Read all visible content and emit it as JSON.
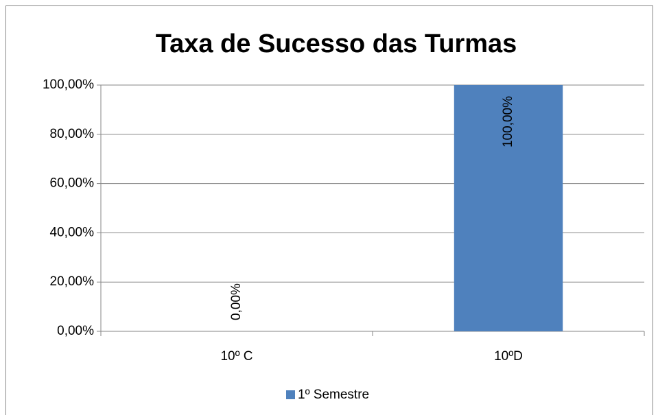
{
  "chart_data": {
    "type": "bar",
    "title": "Taxa de Sucesso das Turmas",
    "categories": [
      "10º C",
      "10ºD"
    ],
    "series": [
      {
        "name": "1º Semestre",
        "color": "#4f81bd",
        "values": [
          0,
          100
        ],
        "value_labels": [
          "0,00%",
          "100,00%"
        ]
      }
    ],
    "ylim": [
      0,
      100
    ],
    "yticks": [
      {
        "value": 0,
        "label": "0,00%"
      },
      {
        "value": 20,
        "label": "20,00%"
      },
      {
        "value": 40,
        "label": "40,00%"
      },
      {
        "value": 60,
        "label": "60,00%"
      },
      {
        "value": 80,
        "label": "80,00%"
      },
      {
        "value": 100,
        "label": "100,00%"
      }
    ],
    "grid": true,
    "legend": "bottom"
  }
}
